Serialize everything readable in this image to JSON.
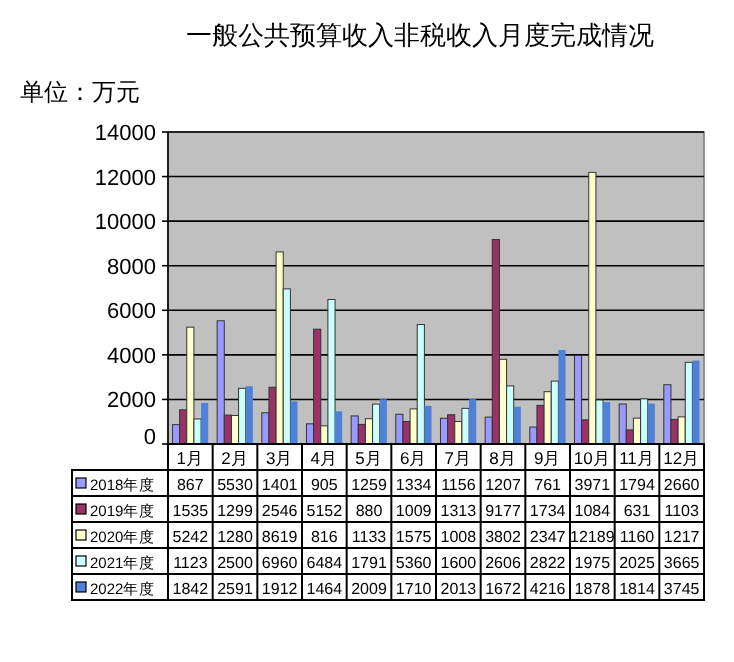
{
  "chart_data": {
    "type": "bar",
    "title": "一般公共预算收入非税收入月度完成情况",
    "subtitle": "单位：万元",
    "categories": [
      "1月",
      "2月",
      "3月",
      "4月",
      "5月",
      "6月",
      "7月",
      "8月",
      "9月",
      "10月",
      "11月",
      "12月"
    ],
    "series": [
      {
        "name": "2018年度",
        "color": "#9999ff",
        "values": [
          867,
          5530,
          1401,
          905,
          1259,
          1334,
          1156,
          1207,
          761,
          3971,
          1794,
          2660
        ]
      },
      {
        "name": "2019年度",
        "color": "#993366",
        "values": [
          1535,
          1299,
          2546,
          5152,
          880,
          1009,
          1313,
          9177,
          1734,
          1084,
          631,
          1103
        ]
      },
      {
        "name": "2020年度",
        "color": "#ffffcc",
        "values": [
          5242,
          1280,
          8619,
          816,
          1133,
          1575,
          1008,
          3802,
          2347,
          12189,
          1160,
          1217
        ]
      },
      {
        "name": "2021年度",
        "color": "#ccffff",
        "values": [
          1123,
          2500,
          6960,
          6484,
          1791,
          5360,
          1600,
          2606,
          2822,
          1975,
          2025,
          3665
        ]
      },
      {
        "name": "2022年度",
        "color": "#4f81d9",
        "values": [
          1842,
          2591,
          1912,
          1464,
          2009,
          1710,
          2013,
          1672,
          4216,
          1878,
          1814,
          3745
        ]
      }
    ],
    "ylim": [
      0,
      14000
    ],
    "yticks": [
      0,
      2000,
      4000,
      6000,
      8000,
      10000,
      12000,
      14000
    ],
    "grid": "y",
    "legend": "bottom",
    "data_labels": true
  }
}
